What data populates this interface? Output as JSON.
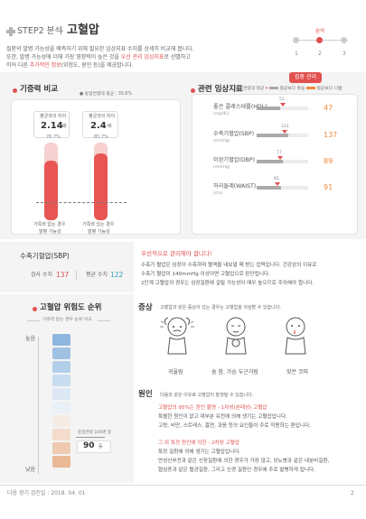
{
  "header": {
    "step": "STEP2 분석",
    "dash": "-",
    "title": "고혈압",
    "progress": {
      "label": "분석",
      "steps": [
        "1",
        "2",
        "3"
      ],
      "current": 2
    }
  },
  "intro": {
    "line1": "질환의 발병 가능성을 예측하기 위해 필요한 임상지표 수치를 상세히 비교해 봅니다.",
    "line2": "또한, 발병 가능성에 더해 가장 영향력이 높은 것을 우선 관리 임상지표로 선별하고",
    "line3_a": "이어 다른",
    "line3_link": "추가적인 정보",
    "line3_b": "(위험도, 원인 등)을 제공합니다.",
    "highlight": "우선 관리 임상지표"
  },
  "ratio": {
    "title": "기증력 비교",
    "legend": "동일연령대 평균 : 35.6%",
    "left": {
      "caption_line1": "평균과의 차이",
      "value": "2.14",
      "unit": "배",
      "percent": "76.7%",
      "bottom_line1": "가족력 없는 경우",
      "bottom_line2": "발병 가능성",
      "level": 0.767
    },
    "right": {
      "caption_line1": "평균과의 차이",
      "value": "2.4",
      "unit": "배",
      "percent": "85.7%",
      "bottom_line1": "가족력 있는 경우",
      "bottom_line2": "발병 가능성",
      "level": 0.857
    }
  },
  "indicators": {
    "title": "관련 임상지표",
    "priority_button": "집중 관리",
    "legend": {
      "avg": "동일연령대 평균",
      "better": "평균보다 좋음",
      "worse": "평균보다 나쁨"
    },
    "items": [
      {
        "label": "좋은 콜레스테롤(HDL)",
        "unit": "(mg/dL)",
        "avg": "51",
        "value": "47",
        "fill": 0.45,
        "avg_pos": 0.5
      },
      {
        "label": "수축기혈압(SBP)",
        "unit": "(mmHg)",
        "avg": "122",
        "value": "137",
        "fill": 0.62,
        "avg_pos": 0.55
      },
      {
        "label": "이완기혈압(DBP)",
        "unit": "(mmHg)",
        "avg": "77",
        "value": "89",
        "fill": 0.5,
        "avg_pos": 0.45
      },
      {
        "label": "허리둘레(WAIST)",
        "unit": "(cm)",
        "avg": "85",
        "value": "91",
        "fill": 0.48,
        "avg_pos": 0.4
      }
    ]
  },
  "sbp": {
    "title": "수축기혈압(SBP)",
    "test_label": "검사 수치",
    "test_value": "137",
    "avg_label": "평균 수치",
    "avg_value": "122",
    "warn": "우선적으로 관리해야 합니다!",
    "desc1": "수축기 혈압은 심장이 수축하며 혈액을 내보낼 때 받는 압력입니다. 건강상의 이유로",
    "desc2": "수축기 혈압이 140mmHg 이상이면 고혈압으로 판단됩니다.",
    "desc3": "2단계 고혈압의 경우는 심장질환에 걸릴 가능성이 매우 높으므로 주의해야 합니다."
  },
  "risk": {
    "title": "고혈압 위험도 순위",
    "subtitle": "가족력 없는 경우 순위 비교",
    "top": "높음",
    "bottom": "낮음",
    "rank_label": "동일연령 100명 중",
    "rank_value": "90",
    "rank_unit": "등"
  },
  "symptoms": {
    "title": "증상",
    "desc": "고혈압과 같은 증상이 있는 경우는 고혈압을 의심할 수 있습니다.",
    "items": [
      "귀울림",
      "숨 참, 가슴 두근거림",
      "잦은 코피"
    ]
  },
  "cause": {
    "title": "원인",
    "desc": "다음과 같은 이유로 고혈압이 발생될 수 있습니다.",
    "c1_title_a": "고혈압의 95%는 원인 불명 - 1차성(본태성) 고혈압",
    "c1_l1": "특별한 원인이 없고 대부분 유전에 의해 생기는 고혈압입니다.",
    "c1_l2": "고령, 비만, 스트레스, 흡연, 과음 등의 요인들이 주로 작용하는 편입니다.",
    "c2_title": "그 외 특정 원인에 의한 - 2차성 고혈압",
    "c2_l1": "특정 질환에 의해 생기는 고혈압입니다.",
    "c2_l2": "만성신부전과 같은 신장질환에 의한 경우가 가장 많고, 당뇨병과 같은 내분비질환,",
    "c2_l3": "협심증과 같은 혈관질환, 그리고 신경 질환인 경우에 주로 발병하게 됩니다."
  },
  "footer": {
    "date": "다음 정기 검진일 : 2018. 04. 01",
    "page": "2"
  }
}
